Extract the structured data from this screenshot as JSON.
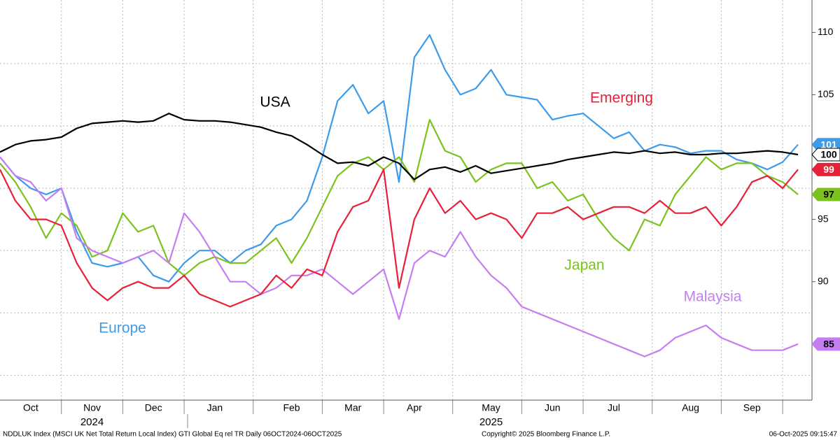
{
  "chart_data": {
    "type": "line",
    "categories": [
      null,
      null,
      "Oct",
      null,
      null,
      null,
      "Nov",
      null,
      null,
      null,
      "Dec",
      null,
      null,
      null,
      "Jan",
      null,
      null,
      null,
      null,
      "Feb",
      null,
      null,
      null,
      "Mar",
      null,
      null,
      null,
      "Apr",
      null,
      null,
      null,
      null,
      "May",
      null,
      null,
      null,
      "Jun",
      null,
      null,
      null,
      "Jul",
      null,
      null,
      null,
      null,
      "Aug",
      null,
      null,
      null,
      "Sep",
      null,
      null,
      null
    ],
    "category_groups": [
      null,
      null,
      null,
      null,
      null,
      null,
      "2024",
      null,
      null,
      null,
      null,
      null,
      null,
      null,
      null,
      null,
      null,
      null,
      null,
      null,
      null,
      null,
      null,
      null,
      null,
      null,
      null,
      null,
      null,
      null,
      null,
      null,
      "2025",
      null,
      null,
      null,
      null,
      null,
      null,
      null,
      null,
      null,
      null,
      null,
      null,
      null,
      null,
      null,
      null,
      null,
      null,
      null,
      null
    ],
    "series": [
      {
        "name": "Europe",
        "color": "#3d9be9",
        "end_label": "101",
        "values": [
          100.0,
          98.5,
          97.5,
          97.0,
          97.5,
          94.0,
          91.5,
          91.2,
          91.5,
          92.0,
          90.5,
          90.0,
          91.5,
          92.5,
          92.5,
          91.5,
          92.5,
          93.0,
          94.5,
          95.0,
          96.5,
          100.0,
          104.5,
          105.8,
          103.5,
          104.5,
          98.0,
          108.0,
          109.8,
          107.0,
          105.0,
          105.5,
          107.0,
          105.0,
          104.8,
          104.6,
          103.0,
          103.3,
          103.5,
          102.5,
          101.5,
          102.0,
          100.5,
          101.0,
          100.8,
          100.3,
          100.5,
          100.5,
          99.8,
          99.5,
          99.0,
          99.6,
          101.0
        ]
      },
      {
        "name": "Japan",
        "color": "#7cc21e",
        "end_label": "97",
        "values": [
          99.5,
          98.0,
          96.0,
          93.5,
          95.5,
          94.5,
          92.0,
          92.5,
          95.5,
          94.0,
          94.5,
          91.5,
          90.5,
          91.5,
          92.0,
          91.5,
          91.5,
          92.5,
          93.5,
          91.5,
          93.5,
          96.0,
          98.5,
          99.5,
          100.0,
          99.0,
          100.0,
          98.0,
          103.0,
          100.5,
          100.0,
          98.0,
          99.0,
          99.5,
          99.5,
          97.5,
          98.0,
          96.5,
          97.0,
          95.0,
          93.5,
          92.5,
          95.0,
          94.5,
          97.0,
          98.5,
          100.0,
          99.0,
          99.5,
          99.5,
          98.5,
          98.0,
          97.0
        ]
      },
      {
        "name": "Malaysia",
        "color": "#c57ef2",
        "end_label": "85",
        "values": [
          100.0,
          98.5,
          98.0,
          96.5,
          97.5,
          93.5,
          92.5,
          92.0,
          91.5,
          92.0,
          92.5,
          91.5,
          95.5,
          94.0,
          92.0,
          90.0,
          90.0,
          89.0,
          89.5,
          90.5,
          90.5,
          91.0,
          90.0,
          89.0,
          90.0,
          91.0,
          87.0,
          91.5,
          92.5,
          92.0,
          94.0,
          92.0,
          90.5,
          89.5,
          88.0,
          87.5,
          87.0,
          86.5,
          86.0,
          85.5,
          85.0,
          84.5,
          84.0,
          84.5,
          85.5,
          86.0,
          86.5,
          85.5,
          85.0,
          84.5,
          84.5,
          84.5,
          85.0
        ]
      },
      {
        "name": "Emerging",
        "color": "#e8203a",
        "end_label": "99",
        "values": [
          99.0,
          96.5,
          95.0,
          95.0,
          94.5,
          91.5,
          89.5,
          88.5,
          89.5,
          90.0,
          89.5,
          89.5,
          90.5,
          89.0,
          88.5,
          88.0,
          88.5,
          89.0,
          90.5,
          89.5,
          91.0,
          90.5,
          94.0,
          96.0,
          96.5,
          99.0,
          89.5,
          95.0,
          97.5,
          95.5,
          96.5,
          95.0,
          95.5,
          95.0,
          93.5,
          95.5,
          95.5,
          96.0,
          95.0,
          95.5,
          96.0,
          96.0,
          95.5,
          96.5,
          95.5,
          95.5,
          96.0,
          94.5,
          96.0,
          98.0,
          98.5,
          97.5,
          99.0
        ]
      },
      {
        "name": "USA",
        "color": "#000000",
        "end_label": "100",
        "values": [
          100.4,
          101.0,
          101.3,
          101.4,
          101.6,
          102.3,
          102.7,
          102.8,
          102.9,
          102.8,
          102.9,
          103.5,
          103.0,
          102.9,
          102.9,
          102.8,
          102.6,
          102.4,
          102.0,
          101.7,
          101.0,
          100.2,
          99.5,
          99.6,
          99.3,
          100.0,
          99.5,
          98.2,
          99.0,
          99.2,
          98.8,
          99.3,
          98.7,
          98.9,
          99.1,
          99.3,
          99.5,
          99.8,
          100.0,
          100.2,
          100.4,
          100.3,
          100.5,
          100.3,
          100.4,
          100.2,
          100.2,
          100.3,
          100.3,
          100.4,
          100.5,
          100.4,
          100.2
        ]
      }
    ],
    "ylim": [
      80.5,
      112.6
    ],
    "yticks": [
      90,
      95,
      105,
      110
    ],
    "ygrid": [
      82.5,
      87.5,
      92.5,
      97.5,
      102.5,
      107.5
    ],
    "grid": true,
    "footer": {
      "left": "NDDLUK Index (MSCI UK Net Total Return Local Index) GTI Global Eq rel TR Daily 06OCT2024-06OCT2025",
      "center": "Copyright© 2025 Bloomberg Finance L.P.",
      "right": "06-Oct-2025 09:15:47"
    }
  }
}
